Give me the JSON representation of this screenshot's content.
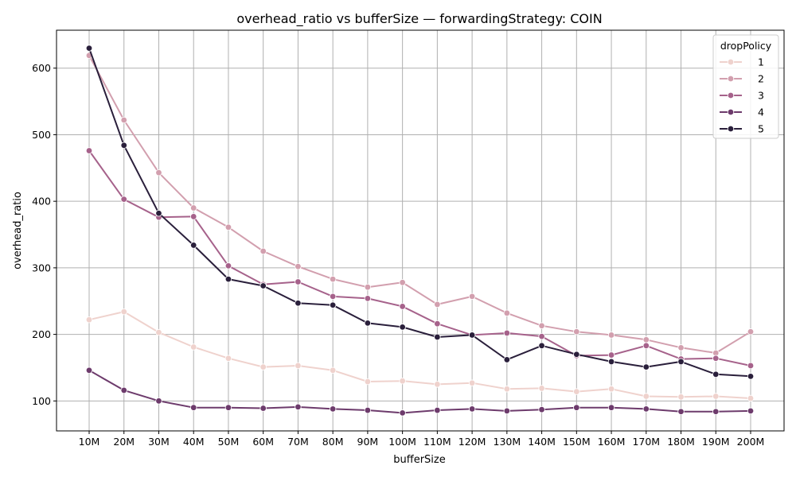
{
  "chart_data": {
    "type": "line",
    "title": "overhead_ratio vs bufferSize — forwardingStrategy: COIN",
    "xlabel": "bufferSize",
    "ylabel": "overhead_ratio",
    "categories": [
      "10M",
      "20M",
      "30M",
      "40M",
      "50M",
      "60M",
      "70M",
      "80M",
      "90M",
      "100M",
      "110M",
      "120M",
      "130M",
      "140M",
      "150M",
      "160M",
      "170M",
      "180M",
      "190M",
      "200M"
    ],
    "ylim": [
      55,
      657
    ],
    "yticks": [
      100,
      200,
      300,
      400,
      500,
      600
    ],
    "grid": true,
    "legend": {
      "title": "dropPolicy",
      "placement": "top-right"
    },
    "series": [
      {
        "name": "1",
        "color": "#efd2cd",
        "values": [
          222,
          234,
          203,
          181,
          164,
          151,
          153,
          146,
          129,
          130,
          125,
          127,
          118,
          119,
          114,
          118,
          107,
          106,
          107,
          104
        ]
      },
      {
        "name": "2",
        "color": "#d29fae",
        "values": [
          619,
          522,
          443,
          390,
          361,
          325,
          302,
          283,
          271,
          278,
          245,
          257,
          232,
          213,
          204,
          199,
          192,
          180,
          172,
          204
        ]
      },
      {
        "name": "3",
        "color": "#a6628b",
        "values": [
          476,
          403,
          376,
          377,
          303,
          275,
          279,
          257,
          254,
          242,
          216,
          199,
          202,
          197,
          168,
          169,
          183,
          163,
          164,
          153
        ]
      },
      {
        "name": "4",
        "color": "#6d3b6c",
        "values": [
          146,
          116,
          100,
          90,
          90,
          89,
          91,
          88,
          86,
          82,
          86,
          88,
          85,
          87,
          90,
          90,
          88,
          84,
          84,
          85
        ]
      },
      {
        "name": "5",
        "color": "#2a1f3b",
        "values": [
          630,
          484,
          382,
          334,
          283,
          273,
          247,
          244,
          217,
          211,
          196,
          199,
          162,
          183,
          170,
          159,
          151,
          159,
          140,
          137
        ]
      }
    ]
  }
}
